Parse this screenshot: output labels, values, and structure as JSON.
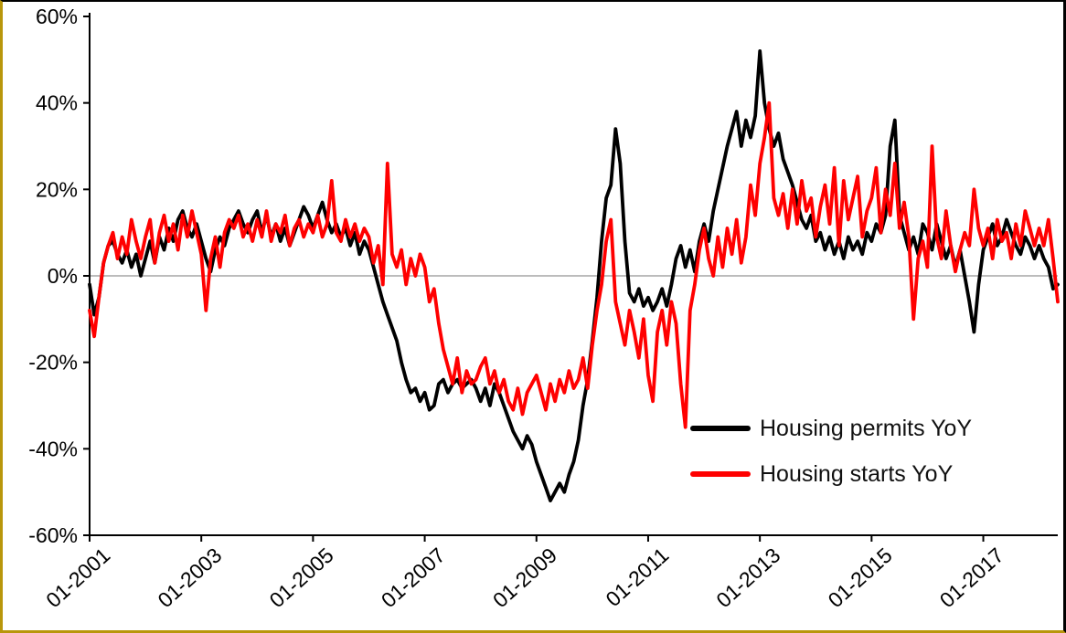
{
  "chart_data": {
    "type": "line",
    "title": "",
    "xlabel": "",
    "ylabel": "",
    "ylim": [
      -60,
      60
    ],
    "grid": "zero-line-only",
    "legend_position": "inside-lower-right",
    "x_frequency": "monthly",
    "x_start": "01-2001",
    "x_end": "05-2018",
    "y_ticks": [
      60,
      40,
      20,
      0,
      -20,
      -40,
      -60
    ],
    "y_tick_labels": [
      "60%",
      "40%",
      "20%",
      "0%",
      "-20%",
      "-40%",
      "-60%"
    ],
    "x_ticks": [
      {
        "index": 0,
        "label": "01-2001"
      },
      {
        "index": 24,
        "label": "01-2003"
      },
      {
        "index": 48,
        "label": "01-2005"
      },
      {
        "index": 72,
        "label": "01-2007"
      },
      {
        "index": 96,
        "label": "01-2009"
      },
      {
        "index": 120,
        "label": "01-2011"
      },
      {
        "index": 144,
        "label": "01-2013"
      },
      {
        "index": 168,
        "label": "01-2015"
      },
      {
        "index": 192,
        "label": "01-2017"
      }
    ],
    "series": [
      {
        "name": "Housing permits YoY",
        "color": "#000000",
        "values": [
          -2,
          -9,
          -5,
          3,
          7,
          8,
          5,
          3,
          6,
          2,
          5,
          0,
          4,
          8,
          3,
          9,
          6,
          11,
          8,
          13,
          15,
          11,
          9,
          12,
          8,
          4,
          1,
          6,
          9,
          7,
          11,
          13,
          15,
          12,
          10,
          13,
          15,
          10,
          14,
          9,
          12,
          8,
          11,
          7,
          10,
          13,
          16,
          14,
          11,
          14,
          17,
          13,
          10,
          12,
          9,
          11,
          7,
          10,
          5,
          8,
          6,
          2,
          -2,
          -6,
          -9,
          -12,
          -15,
          -20,
          -24,
          -27,
          -26,
          -29,
          -27,
          -31,
          -30,
          -25,
          -24,
          -27,
          -25,
          -24,
          -26,
          -25,
          -24,
          -26,
          -29,
          -26,
          -30,
          -25,
          -27,
          -30,
          -33,
          -36,
          -38,
          -40,
          -37,
          -39,
          -43,
          -46,
          -49,
          -52,
          -50,
          -48,
          -50,
          -46,
          -43,
          -38,
          -30,
          -24,
          -15,
          -5,
          8,
          18,
          21,
          34,
          26,
          8,
          -4,
          -6,
          -3,
          -7,
          -5,
          -8,
          -6,
          -3,
          -7,
          -2,
          4,
          7,
          2,
          6,
          1,
          8,
          12,
          8,
          15,
          20,
          25,
          30,
          34,
          38,
          30,
          36,
          32,
          37,
          52,
          40,
          34,
          30,
          33,
          27,
          24,
          21,
          17,
          13,
          11,
          14,
          8,
          10,
          6,
          9,
          5,
          8,
          4,
          9,
          6,
          8,
          5,
          10,
          8,
          12,
          10,
          14,
          30,
          36,
          14,
          10,
          6,
          9,
          5,
          12,
          10,
          6,
          12,
          8,
          4,
          7,
          2,
          6,
          0,
          -6,
          -13,
          -2,
          6,
          9,
          12,
          7,
          9,
          13,
          10,
          7,
          5,
          9,
          7,
          4,
          7,
          4,
          2,
          -3,
          -2
        ]
      },
      {
        "name": "Housing starts YoY",
        "color": "#ff0000",
        "values": [
          -8,
          -14,
          -5,
          3,
          7,
          10,
          4,
          9,
          5,
          13,
          8,
          4,
          9,
          13,
          3,
          10,
          14,
          8,
          12,
          6,
          14,
          9,
          15,
          10,
          5,
          -8,
          4,
          9,
          2,
          10,
          13,
          11,
          14,
          9,
          12,
          8,
          13,
          9,
          15,
          8,
          12,
          10,
          14,
          7,
          11,
          13,
          9,
          12,
          10,
          14,
          9,
          12,
          22,
          10,
          8,
          13,
          9,
          12,
          8,
          11,
          9,
          3,
          7,
          -2,
          26,
          5,
          2,
          6,
          -2,
          4,
          0,
          5,
          2,
          -6,
          -3,
          -11,
          -17,
          -21,
          -25,
          -19,
          -27,
          -22,
          -25,
          -24,
          -21,
          -19,
          -25,
          -22,
          -27,
          -24,
          -29,
          -31,
          -26,
          -32,
          -27,
          -25,
          -23,
          -27,
          -31,
          -25,
          -29,
          -24,
          -27,
          -22,
          -26,
          -24,
          -19,
          -26,
          -16,
          -8,
          -2,
          8,
          13,
          -6,
          -11,
          -16,
          -8,
          -13,
          -19,
          -10,
          -23,
          -29,
          -13,
          -8,
          -16,
          -6,
          -11,
          -25,
          -35,
          -8,
          -2,
          6,
          11,
          4,
          0,
          9,
          2,
          11,
          5,
          13,
          3,
          9,
          21,
          14,
          26,
          32,
          40,
          18,
          14,
          19,
          11,
          20,
          12,
          22,
          15,
          18,
          9,
          16,
          21,
          12,
          25,
          7,
          22,
          13,
          18,
          23,
          9,
          15,
          18,
          25,
          10,
          20,
          14,
          26,
          11,
          17,
          9,
          -10,
          4,
          8,
          2,
          30,
          9,
          4,
          15,
          7,
          1,
          6,
          10,
          7,
          20,
          11,
          7,
          11,
          4,
          13,
          8,
          10,
          4,
          12,
          7,
          15,
          11,
          7,
          11,
          7,
          13,
          4,
          -6
        ]
      }
    ]
  },
  "legend": {
    "items": [
      {
        "label": "Housing permits YoY"
      },
      {
        "label": "Housing starts YoY"
      }
    ]
  },
  "frame": {
    "border_left_bottom_color": "#b8960b",
    "border_top_right_color": "#000000",
    "zero_line_color": "#a6a6a6"
  }
}
